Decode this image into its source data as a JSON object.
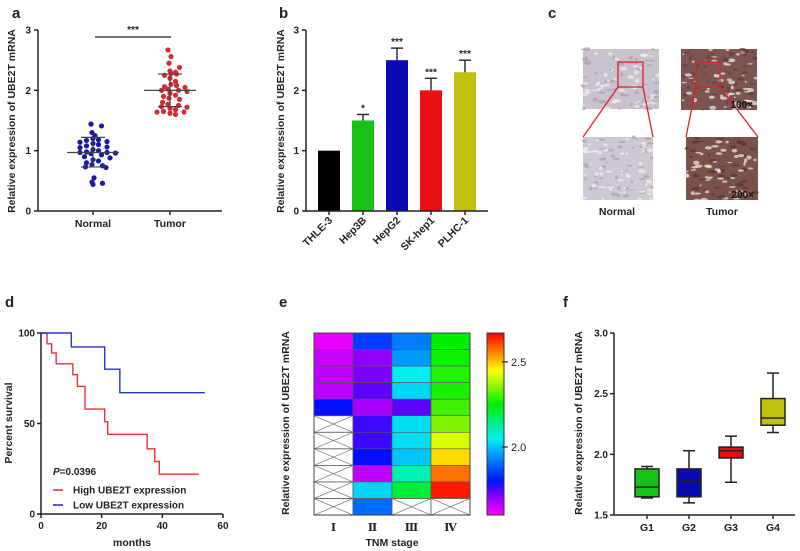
{
  "colors": {
    "normal": "#1a1aa6",
    "tumor": "#d42a32",
    "high": "#e8323a",
    "low": "#2a32c8"
  },
  "chart_data": [
    {
      "panel": "a",
      "type": "scatter",
      "ylabel": "Relative expression of  UBE2T mRNA",
      "categories": [
        "Normal",
        "Tumor"
      ],
      "yticks": [
        "0",
        "1",
        "2",
        "3"
      ],
      "ylim": [
        0,
        3
      ],
      "significance": "***",
      "series": [
        {
          "name": "Normal",
          "color": "#1a1aa6",
          "mean": 0.97,
          "sd_low": 0.73,
          "sd_high": 1.22,
          "values": [
            1.44,
            1.41,
            1.3,
            1.25,
            1.2,
            1.18,
            1.17,
            1.15,
            1.14,
            1.12,
            1.1,
            1.08,
            1.06,
            1.05,
            1.02,
            1.0,
            0.98,
            0.97,
            0.97,
            0.96,
            0.95,
            0.93,
            0.9,
            0.88,
            0.85,
            0.83,
            0.8,
            0.77,
            0.75,
            0.73,
            0.72,
            0.55,
            0.48,
            0.46,
            0.44
          ]
        },
        {
          "name": "Tumor",
          "color": "#d42a32",
          "mean": 2.0,
          "sd_low": 1.73,
          "sd_high": 2.27,
          "values": [
            2.67,
            2.56,
            2.45,
            2.38,
            2.32,
            2.3,
            2.28,
            2.27,
            2.25,
            2.2,
            2.15,
            2.1,
            2.08,
            2.06,
            2.05,
            2.02,
            2.0,
            2.0,
            1.98,
            1.95,
            1.92,
            1.9,
            1.87,
            1.85,
            1.8,
            1.77,
            1.75,
            1.73,
            1.72,
            1.7,
            1.68,
            1.65,
            1.64,
            1.64,
            1.62,
            1.6
          ]
        }
      ]
    },
    {
      "panel": "b",
      "type": "bar",
      "ylabel": "Relative expression of  UBE2T mRNA",
      "categories": [
        "THLE-3",
        "Hep3B",
        "HepG2",
        "SK-hep1",
        "PLHC-1"
      ],
      "values": [
        1.0,
        1.5,
        2.5,
        2.0,
        2.3
      ],
      "errors": [
        0,
        0.1,
        0.2,
        0.2,
        0.2
      ],
      "colors": [
        "#000000",
        "#18c018",
        "#0a0ab4",
        "#e81010",
        "#c0c010"
      ],
      "significance": [
        "",
        "*",
        "***",
        "***",
        "***"
      ],
      "yticks": [
        "0",
        "1",
        "2",
        "3"
      ],
      "ylim": [
        0,
        3
      ]
    },
    {
      "panel": "c",
      "type": "image",
      "labels": [
        "Normal",
        "Tumor"
      ],
      "magnifications": [
        "100×",
        "200×"
      ]
    },
    {
      "panel": "d",
      "type": "line",
      "ylabel": "Percent survival",
      "xlabel": "months",
      "xticks": [
        "0",
        "20",
        "40",
        "60"
      ],
      "yticks": [
        "0",
        "50",
        "100"
      ],
      "xlim": [
        0,
        60
      ],
      "ylim": [
        0,
        100
      ],
      "p_label": "P",
      "p_value": "=0.0396",
      "series": [
        {
          "name": "High UBE2T expression",
          "color": "#e8323a",
          "steps": [
            [
              0,
              100
            ],
            [
              2,
              94
            ],
            [
              3.5,
              89
            ],
            [
              5,
              83
            ],
            [
              10.5,
              77
            ],
            [
              12,
              70.5
            ],
            [
              14.5,
              58
            ],
            [
              21,
              51
            ],
            [
              22,
              44
            ],
            [
              35,
              36
            ],
            [
              37.5,
              29
            ],
            [
              39,
              22
            ],
            [
              52,
              22
            ]
          ]
        },
        {
          "name": "Low UBE2T expression",
          "color": "#2a32c8",
          "steps": [
            [
              0,
              100
            ],
            [
              10,
              92.3
            ],
            [
              21,
              80
            ],
            [
              26,
              67
            ],
            [
              54,
              67
            ]
          ]
        }
      ]
    },
    {
      "panel": "e",
      "type": "heatmap",
      "ylabel": "Relative expression of  UBE2T mRNA",
      "xlabel": "TNM stage",
      "columns": [
        "Ⅰ",
        "Ⅱ",
        "Ⅲ",
        "Ⅳ"
      ],
      "colorbar_ticks": [
        "2.0",
        "2.5"
      ],
      "colorbar_range": [
        1.6,
        2.67
      ],
      "values": [
        [
          1.62,
          1.65,
          1.66,
          1.66,
          1.8,
          null,
          null,
          null,
          null,
          null,
          null
        ],
        [
          1.85,
          1.7,
          1.72,
          1.74,
          1.68,
          1.76,
          1.76,
          1.8,
          1.66,
          2.02,
          1.9
        ],
        [
          1.92,
          1.95,
          2.05,
          2.02,
          1.74,
          2.03,
          2.03,
          2.0,
          2.1,
          2.2,
          null
        ],
        [
          2.25,
          2.26,
          2.28,
          2.27,
          2.3,
          2.35,
          2.42,
          2.48,
          2.57,
          2.65,
          null
        ]
      ]
    },
    {
      "panel": "f",
      "type": "box",
      "ylabel": "Relative expression of  UBE2T mRNA",
      "categories": [
        "G1",
        "G2",
        "G3",
        "G4"
      ],
      "yticks": [
        "1.5",
        "2.0",
        "2.5",
        "3.0"
      ],
      "ylim": [
        1.5,
        3.0
      ],
      "colors": [
        "#18c018",
        "#0a0ab4",
        "#e81010",
        "#c0c010"
      ],
      "boxes": [
        {
          "min": 1.64,
          "q1": 1.65,
          "median": 1.73,
          "q3": 1.88,
          "max": 1.9
        },
        {
          "min": 1.6,
          "q1": 1.65,
          "median": 1.78,
          "q3": 1.88,
          "max": 2.03
        },
        {
          "min": 1.77,
          "q1": 1.97,
          "median": 2.03,
          "q3": 2.06,
          "max": 2.15
        },
        {
          "min": 2.18,
          "q1": 2.24,
          "median": 2.3,
          "q3": 2.46,
          "max": 2.67
        }
      ]
    }
  ]
}
